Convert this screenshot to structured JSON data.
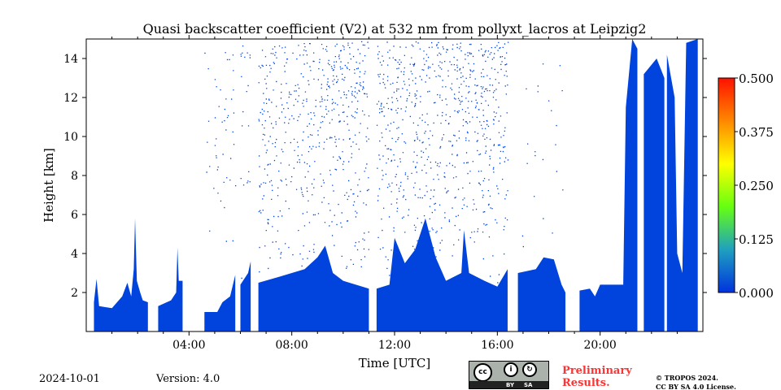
{
  "header": {
    "title": "Quasi backscatter coefficient (V2) at 532 nm from pollyxt_lacros at Leipzig2"
  },
  "footer": {
    "date": "2024-10-01",
    "version": "Version: 4.0",
    "preliminary_line1": "Preliminary",
    "preliminary_line2": "Results.",
    "copyright_line1": "© TROPOS 2024.",
    "copyright_line2": "CC BY SA 4.0 License.",
    "license_badge": {
      "cc": "cc",
      "by": "BY",
      "sa": "SA"
    }
  },
  "chart_data": {
    "type": "heatmap",
    "title": "Quasi backscatter coefficient (V2) at 532 nm from pollyxt_lacros at Leipzig2",
    "xlabel": "Time [UTC]",
    "ylabel": "Height [km]",
    "xlim_hours": [
      0,
      24
    ],
    "ylim": [
      0,
      15
    ],
    "xticks": [
      {
        "v": 4,
        "label": "04:00"
      },
      {
        "v": 8,
        "label": "08:00"
      },
      {
        "v": 12,
        "label": "12:00"
      },
      {
        "v": 16,
        "label": "16:00"
      },
      {
        "v": 20,
        "label": "20:00"
      }
    ],
    "yticks": [
      {
        "v": 2,
        "label": "2"
      },
      {
        "v": 4,
        "label": "4"
      },
      {
        "v": 6,
        "label": "6"
      },
      {
        "v": 8,
        "label": "8"
      },
      {
        "v": 10,
        "label": "10"
      },
      {
        "v": 12,
        "label": "12"
      },
      {
        "v": 14,
        "label": "14"
      }
    ],
    "colorbar": {
      "range": [
        0,
        0.5
      ],
      "ticks": [
        "0.000",
        "0.125",
        "0.250",
        "0.375",
        "0.500"
      ],
      "colors": [
        "#0033dd",
        "#1fa0c0",
        "#66ff11",
        "#ffff00",
        "#ff8800",
        "#ff1100"
      ]
    },
    "dominant_color": "#0044dd",
    "signal_top_km": [
      [
        [
          0.3,
          1.5
        ],
        [
          0.4,
          2.7
        ],
        [
          0.5,
          1.3
        ],
        [
          1.0,
          1.2
        ],
        [
          1.4,
          1.8
        ],
        [
          1.6,
          2.5
        ],
        [
          1.75,
          1.8
        ],
        [
          1.85,
          3.2
        ],
        [
          1.9,
          5.8
        ],
        [
          1.97,
          2.6
        ],
        [
          2.1,
          2.0
        ],
        [
          2.2,
          1.6
        ],
        [
          2.4,
          1.5
        ]
      ],
      [
        [
          2.8,
          1.3
        ],
        [
          3.3,
          1.6
        ],
        [
          3.5,
          2.0
        ],
        [
          3.55,
          4.3
        ],
        [
          3.6,
          2.6
        ],
        [
          3.75,
          2.6
        ]
      ],
      [
        [
          4.6,
          1.0
        ],
        [
          5.1,
          1.0
        ],
        [
          5.3,
          1.5
        ],
        [
          5.6,
          1.8
        ],
        [
          5.8,
          2.9
        ]
      ],
      [
        [
          6.0,
          2.4
        ],
        [
          6.3,
          3.0
        ],
        [
          6.4,
          3.6
        ]
      ],
      [
        [
          6.7,
          2.5
        ],
        [
          7.5,
          2.8
        ],
        [
          8.0,
          3.0
        ],
        [
          8.5,
          3.2
        ],
        [
          9.0,
          3.8
        ],
        [
          9.3,
          4.4
        ],
        [
          9.6,
          3.0
        ],
        [
          10.0,
          2.6
        ],
        [
          11.0,
          2.2
        ]
      ],
      [
        [
          11.3,
          2.2
        ],
        [
          11.8,
          2.4
        ],
        [
          12.0,
          4.8
        ],
        [
          12.4,
          3.5
        ],
        [
          12.8,
          4.2
        ],
        [
          13.2,
          5.8
        ],
        [
          13.6,
          3.8
        ],
        [
          14.0,
          2.6
        ],
        [
          14.6,
          3.0
        ],
        [
          14.7,
          5.2
        ],
        [
          14.9,
          3.0
        ],
        [
          15.5,
          2.6
        ],
        [
          16.0,
          2.3
        ],
        [
          16.4,
          3.2
        ]
      ],
      [
        [
          16.8,
          3.0
        ],
        [
          17.5,
          3.2
        ],
        [
          17.8,
          3.8
        ],
        [
          18.2,
          3.7
        ],
        [
          18.5,
          2.4
        ],
        [
          18.65,
          2.0
        ]
      ],
      [
        [
          19.2,
          2.1
        ],
        [
          19.6,
          2.2
        ],
        [
          19.8,
          1.8
        ],
        [
          20.0,
          2.4
        ],
        [
          20.9,
          2.4
        ],
        [
          21.0,
          11.5
        ],
        [
          21.25,
          15.0
        ],
        [
          21.45,
          14.5
        ]
      ],
      [
        [
          21.7,
          13.2
        ],
        [
          22.2,
          14.0
        ],
        [
          22.5,
          13.0
        ]
      ],
      [
        [
          22.6,
          14.2
        ],
        [
          22.9,
          12.0
        ],
        [
          23.0,
          4.0
        ],
        [
          23.2,
          3.0
        ],
        [
          23.35,
          14.8
        ],
        [
          23.8,
          15.0
        ]
      ]
    ]
  }
}
